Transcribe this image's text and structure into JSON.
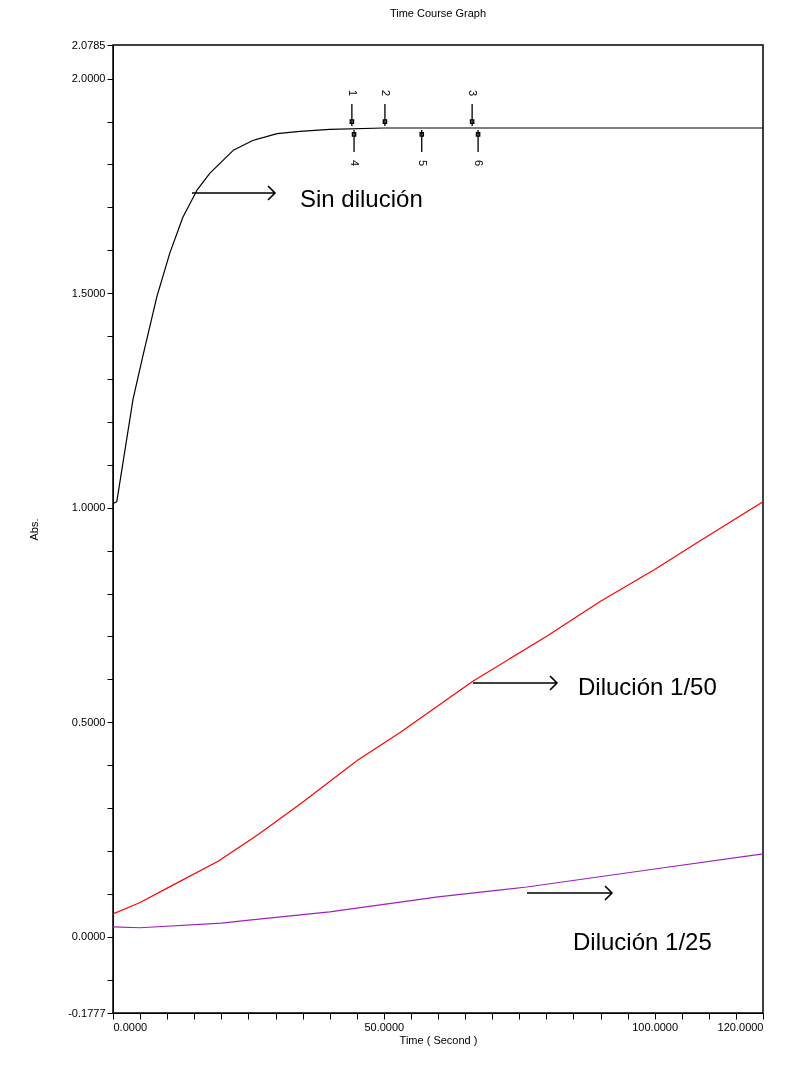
{
  "chart_data": {
    "type": "line",
    "title": "Time Course Graph",
    "xlabel": "Time ( Second )",
    "ylabel": "Abs.",
    "xlim": [
      0,
      120
    ],
    "ylim": [
      -0.1777,
      2.0785
    ],
    "xticks": [
      {
        "value": 0,
        "label": "0.0000"
      },
      {
        "value": 5,
        "label": null
      },
      {
        "value": 10,
        "label": null
      },
      {
        "value": 15,
        "label": null
      },
      {
        "value": 20,
        "label": null
      },
      {
        "value": 25,
        "label": null
      },
      {
        "value": 30,
        "label": null
      },
      {
        "value": 35,
        "label": null
      },
      {
        "value": 40,
        "label": null
      },
      {
        "value": 45,
        "label": null
      },
      {
        "value": 50,
        "label": "50.0000"
      },
      {
        "value": 55,
        "label": null
      },
      {
        "value": 60,
        "label": null
      },
      {
        "value": 65,
        "label": null
      },
      {
        "value": 70,
        "label": null
      },
      {
        "value": 75,
        "label": null
      },
      {
        "value": 80,
        "label": null
      },
      {
        "value": 85,
        "label": null
      },
      {
        "value": 90,
        "label": null
      },
      {
        "value": 95,
        "label": null
      },
      {
        "value": 100,
        "label": "100.0000"
      },
      {
        "value": 105,
        "label": null
      },
      {
        "value": 110,
        "label": null
      },
      {
        "value": 115,
        "label": null
      },
      {
        "value": 120,
        "label": "120.0000"
      }
    ],
    "yticks": [
      {
        "value": -0.1777,
        "label": "-0.1777"
      },
      {
        "value": -0.1,
        "label": null
      },
      {
        "value": 0,
        "label": "0.0000"
      },
      {
        "value": 0.1,
        "label": null
      },
      {
        "value": 0.2,
        "label": null
      },
      {
        "value": 0.3,
        "label": null
      },
      {
        "value": 0.4,
        "label": null
      },
      {
        "value": 0.5,
        "label": "0.5000"
      },
      {
        "value": 0.6,
        "label": null
      },
      {
        "value": 0.7,
        "label": null
      },
      {
        "value": 0.8,
        "label": null
      },
      {
        "value": 0.9,
        "label": null
      },
      {
        "value": 1,
        "label": "1.0000"
      },
      {
        "value": 1.1,
        "label": null
      },
      {
        "value": 1.2,
        "label": null
      },
      {
        "value": 1.3,
        "label": null
      },
      {
        "value": 1.4,
        "label": null
      },
      {
        "value": 1.5,
        "label": "1.5000"
      },
      {
        "value": 1.6,
        "label": null
      },
      {
        "value": 1.7,
        "label": null
      },
      {
        "value": 1.8,
        "label": null
      },
      {
        "value": 1.9,
        "label": null
      },
      {
        "value": 2,
        "label": "2.0000"
      },
      {
        "value": 2.0785,
        "label": "2.0785"
      }
    ],
    "grid": false,
    "legend": false,
    "marker": "none",
    "line_style": "solid",
    "series": [
      {
        "color": "#000000",
        "x": [
          0,
          0.7,
          3.7,
          5.5,
          8.1,
          10.5,
          12.9,
          15.5,
          17.9,
          22.2,
          25.8,
          30.3,
          34.5,
          40,
          50,
          60,
          70,
          80,
          90,
          100,
          110,
          120
        ],
        "values": [
          1.01,
          1.014,
          1.253,
          1.353,
          1.492,
          1.594,
          1.677,
          1.74,
          1.78,
          1.833,
          1.856,
          1.872,
          1.877,
          1.882,
          1.885,
          1.885,
          1.885,
          1.885,
          1.885,
          1.885,
          1.885,
          1.885
        ]
      },
      {
        "color": "#ff0000",
        "x": [
          0,
          5,
          10.7,
          19.4,
          27,
          34.5,
          45,
          53,
          66.5,
          80,
          90,
          100,
          108.4,
          120
        ],
        "values": [
          0.053,
          0.08,
          0.118,
          0.176,
          0.24,
          0.309,
          0.41,
          0.476,
          0.596,
          0.7,
          0.782,
          0.856,
          0.923,
          1.014
        ]
      },
      {
        "color": "#a020c0",
        "x": [
          0,
          5,
          20,
          40,
          60,
          76.4,
          100,
          120
        ],
        "values": [
          0.023,
          0.021,
          0.032,
          0.058,
          0.093,
          0.116,
          0.158,
          0.193
        ]
      }
    ],
    "annotations": [
      {
        "text": "1",
        "x": 44.1,
        "y": 1.885
      },
      {
        "text": "2",
        "x": 50.2,
        "y": 1.885
      },
      {
        "text": "3",
        "x": 66.3,
        "y": 1.885
      },
      {
        "text": "4",
        "x": 44.5,
        "y": 1.885
      },
      {
        "text": "5",
        "x": 57,
        "y": 1.885
      },
      {
        "text": "6",
        "x": 67.4,
        "y": 1.885
      },
      "Sin dilución",
      "Dilución 1/50",
      "Dilución 1/25"
    ]
  }
}
